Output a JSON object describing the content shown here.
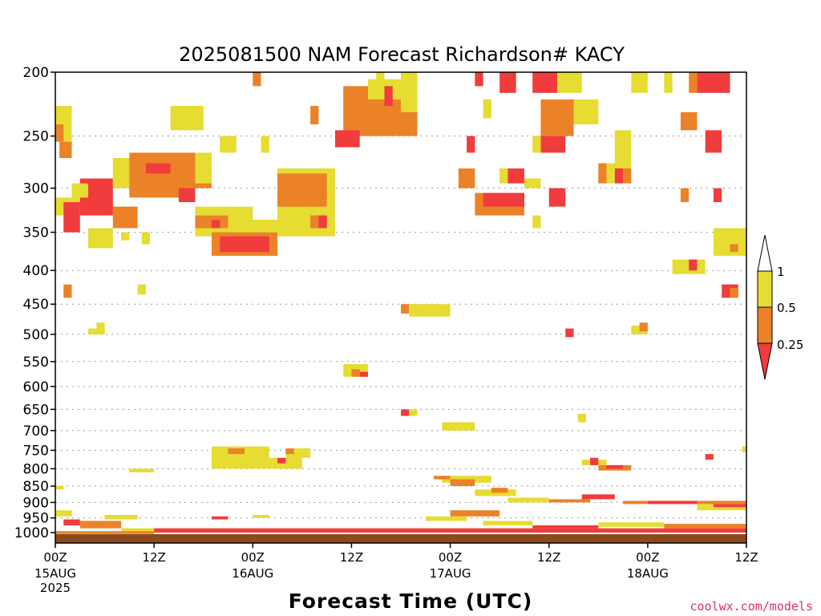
{
  "chart_data": {
    "type": "heatmap",
    "title": "2025081500 NAM Forecast Richardson# KACY",
    "xlabel": "Forecast Time (UTC)",
    "ylabel": "",
    "credit": "coolwx.com/models",
    "y_scale": "log-pressure",
    "y_reversed": true,
    "ylim": [
      200,
      1000
    ],
    "y_ticks": [
      200,
      250,
      300,
      350,
      400,
      450,
      500,
      550,
      600,
      650,
      700,
      750,
      800,
      850,
      900,
      950,
      1000
    ],
    "xlim_hours": [
      0,
      84
    ],
    "x_ticks": [
      {
        "hour": 0,
        "label": "00Z",
        "sub": "15AUG",
        "sub2": "2025"
      },
      {
        "hour": 12,
        "label": "12Z",
        "sub": "",
        "sub2": ""
      },
      {
        "hour": 24,
        "label": "00Z",
        "sub": "16AUG",
        "sub2": ""
      },
      {
        "hour": 36,
        "label": "12Z",
        "sub": "",
        "sub2": ""
      },
      {
        "hour": 48,
        "label": "00Z",
        "sub": "17AUG",
        "sub2": ""
      },
      {
        "hour": 60,
        "label": "12Z",
        "sub": "",
        "sub2": ""
      },
      {
        "hour": 72,
        "label": "00Z",
        "sub": "18AUG",
        "sub2": ""
      },
      {
        "hour": 84,
        "label": "12Z",
        "sub": "",
        "sub2": ""
      }
    ],
    "grid": true,
    "colorbar": {
      "position": "right",
      "levels": [
        {
          "label": "1",
          "value": 1.0
        },
        {
          "label": "0.5",
          "value": 0.5
        },
        {
          "label": "0.25",
          "value": 0.25
        }
      ],
      "bins": [
        {
          "range": "<0.25",
          "color": "#f03c3c"
        },
        {
          "range": "0.25-0.5",
          "color": "#eb8228"
        },
        {
          "range": "0.5-1",
          "color": "#e6dc32"
        },
        {
          "range": ">1",
          "color": "#ffffff"
        }
      ]
    },
    "bins_legend": [
      "<0.25",
      "0.25-0.5",
      "0.5-1"
    ],
    "cells": [
      [
        0,
        2,
        225,
        255,
        "0.5-1"
      ],
      [
        0,
        1,
        240,
        255,
        "0.25-0.5"
      ],
      [
        0.5,
        2,
        255,
        270,
        "0.25-0.5"
      ],
      [
        0,
        6,
        310,
        330,
        "0.5-1"
      ],
      [
        1,
        3,
        315,
        350,
        "<0.25"
      ],
      [
        3,
        7,
        290,
        330,
        "<0.25"
      ],
      [
        7,
        10,
        320,
        345,
        "0.25-0.5"
      ],
      [
        2,
        4,
        295,
        310,
        "0.5-1"
      ],
      [
        7,
        11,
        270,
        300,
        "0.5-1"
      ],
      [
        9,
        17,
        265,
        310,
        "0.25-0.5"
      ],
      [
        11,
        14,
        275,
        285,
        "<0.25"
      ],
      [
        14,
        19,
        275,
        300,
        "0.25-0.5"
      ],
      [
        15,
        17,
        300,
        315,
        "<0.25"
      ],
      [
        17,
        19,
        265,
        295,
        "0.5-1"
      ],
      [
        4,
        7,
        345,
        370,
        "0.5-1"
      ],
      [
        8,
        9,
        350,
        360,
        "0.5-1"
      ],
      [
        10.5,
        11.5,
        350,
        365,
        "0.5-1"
      ],
      [
        17,
        24,
        320,
        355,
        "0.5-1"
      ],
      [
        17,
        21,
        330,
        345,
        "0.25-0.5"
      ],
      [
        19,
        20,
        335,
        345,
        "<0.25"
      ],
      [
        19,
        27,
        350,
        380,
        "0.25-0.5"
      ],
      [
        20,
        26,
        355,
        375,
        "<0.25"
      ],
      [
        22,
        27,
        335,
        350,
        "0.5-1"
      ],
      [
        27,
        34,
        280,
        355,
        "0.5-1"
      ],
      [
        27,
        33,
        285,
        320,
        "0.25-0.5"
      ],
      [
        31,
        33,
        330,
        345,
        "0.25-0.5"
      ],
      [
        32,
        33,
        330,
        345,
        "<0.25"
      ],
      [
        24,
        25,
        200,
        210,
        "0.25-0.5"
      ],
      [
        14,
        18,
        225,
        245,
        "0.5-1"
      ],
      [
        20,
        22,
        250,
        265,
        "0.5-1"
      ],
      [
        25,
        26,
        250,
        265,
        "0.5-1"
      ],
      [
        35,
        44,
        210,
        250,
        "0.25-0.5"
      ],
      [
        34,
        37,
        245,
        260,
        "<0.25"
      ],
      [
        37,
        44,
        230,
        245,
        "0.25-0.5"
      ],
      [
        38,
        44,
        205,
        220,
        "0.5-1"
      ],
      [
        39,
        40,
        200,
        210,
        "0.5-1"
      ],
      [
        40,
        41,
        210,
        225,
        "<0.25"
      ],
      [
        42,
        44,
        200,
        230,
        "0.5-1"
      ],
      [
        31,
        32,
        225,
        240,
        "0.25-0.5"
      ],
      [
        10,
        11,
        420,
        435,
        "0.5-1"
      ],
      [
        1,
        2,
        420,
        440,
        "0.25-0.5"
      ],
      [
        42,
        43,
        450,
        465,
        "0.25-0.5"
      ],
      [
        43,
        48,
        450,
        470,
        "0.5-1"
      ],
      [
        5,
        6,
        480,
        500,
        "0.5-1"
      ],
      [
        4,
        6,
        490,
        500,
        "0.5-1"
      ],
      [
        35,
        38,
        555,
        580,
        "0.5-1"
      ],
      [
        36,
        37,
        565,
        580,
        "0.25-0.5"
      ],
      [
        37,
        38,
        570,
        580,
        "<0.25"
      ],
      [
        42,
        43,
        650,
        665,
        "<0.25"
      ],
      [
        43,
        44,
        650,
        665,
        "0.5-1"
      ],
      [
        47,
        51,
        680,
        700,
        "0.5-1"
      ],
      [
        51,
        52,
        200,
        210,
        "<0.25"
      ],
      [
        54,
        56,
        200,
        215,
        "<0.25"
      ],
      [
        52,
        53,
        220,
        235,
        "0.5-1"
      ],
      [
        50,
        51,
        250,
        265,
        "<0.25"
      ],
      [
        49,
        51,
        280,
        300,
        "0.25-0.5"
      ],
      [
        51,
        57,
        305,
        330,
        "0.25-0.5"
      ],
      [
        52,
        57,
        305,
        320,
        "<0.25"
      ],
      [
        54,
        55,
        280,
        295,
        "0.5-1"
      ],
      [
        55,
        57,
        280,
        295,
        "<0.25"
      ],
      [
        57,
        59,
        290,
        300,
        "0.5-1"
      ],
      [
        58,
        61,
        200,
        215,
        "<0.25"
      ],
      [
        59,
        63,
        220,
        250,
        "0.25-0.5"
      ],
      [
        59,
        62,
        250,
        265,
        "<0.25"
      ],
      [
        58,
        59,
        250,
        265,
        "0.5-1"
      ],
      [
        60,
        62,
        300,
        320,
        "<0.25"
      ],
      [
        58,
        59,
        330,
        345,
        "0.5-1"
      ],
      [
        63,
        66,
        220,
        240,
        "0.5-1"
      ],
      [
        61,
        64,
        200,
        215,
        "0.5-1"
      ],
      [
        70,
        72,
        200,
        215,
        "0.5-1"
      ],
      [
        74,
        75,
        200,
        215,
        "0.5-1"
      ],
      [
        78,
        82,
        200,
        215,
        "<0.25"
      ],
      [
        77,
        78,
        200,
        215,
        "0.25-0.5"
      ],
      [
        66,
        67,
        275,
        295,
        "0.25-0.5"
      ],
      [
        67,
        68,
        275,
        295,
        "0.5-1"
      ],
      [
        68,
        69,
        275,
        295,
        "<0.25"
      ],
      [
        69,
        70,
        275,
        295,
        "0.25-0.5"
      ],
      [
        68,
        70,
        245,
        280,
        "0.5-1"
      ],
      [
        76,
        78,
        230,
        245,
        "0.25-0.5"
      ],
      [
        79,
        81,
        245,
        265,
        "<0.25"
      ],
      [
        76,
        77,
        300,
        315,
        "0.25-0.5"
      ],
      [
        80,
        81,
        300,
        315,
        "<0.25"
      ],
      [
        75,
        79,
        385,
        405,
        "0.5-1"
      ],
      [
        77,
        78,
        385,
        400,
        "<0.25"
      ],
      [
        80,
        84,
        345,
        380,
        "0.5-1"
      ],
      [
        82,
        83,
        365,
        375,
        "0.25-0.5"
      ],
      [
        81,
        83,
        420,
        440,
        "<0.25"
      ],
      [
        82,
        83,
        425,
        440,
        "0.25-0.5"
      ],
      [
        62,
        63,
        490,
        505,
        "<0.25"
      ],
      [
        70,
        72,
        485,
        500,
        "0.5-1"
      ],
      [
        71,
        72,
        480,
        495,
        "0.25-0.5"
      ],
      [
        63.5,
        64.5,
        660,
        680,
        "0.5-1"
      ],
      [
        19,
        26,
        740,
        800,
        "0.5-1"
      ],
      [
        21,
        23,
        745,
        760,
        "0.25-0.5"
      ],
      [
        26,
        30,
        770,
        800,
        "0.5-1"
      ],
      [
        27,
        28,
        770,
        785,
        "<0.25"
      ],
      [
        28,
        31,
        745,
        770,
        "0.5-1"
      ],
      [
        28,
        29,
        745,
        760,
        "0.25-0.5"
      ],
      [
        9,
        12,
        800,
        810,
        "0.5-1"
      ],
      [
        64,
        67,
        775,
        790,
        "0.5-1"
      ],
      [
        65,
        66,
        770,
        790,
        "<0.25"
      ],
      [
        66,
        70,
        790,
        805,
        "0.25-0.5"
      ],
      [
        67,
        69,
        790,
        800,
        "<0.25"
      ],
      [
        79,
        80,
        760,
        775,
        "<0.25"
      ],
      [
        83.5,
        84,
        740,
        755,
        "0.5-1"
      ],
      [
        47,
        53,
        820,
        840,
        "0.5-1"
      ],
      [
        46,
        48,
        820,
        830,
        "0.25-0.5"
      ],
      [
        48,
        51,
        830,
        850,
        "0.25-0.5"
      ],
      [
        51,
        56,
        860,
        880,
        "0.5-1"
      ],
      [
        53,
        55,
        855,
        870,
        "0.25-0.5"
      ],
      [
        55,
        60,
        885,
        900,
        "0.5-1"
      ],
      [
        60,
        65,
        890,
        900,
        "0.25-0.5"
      ],
      [
        64,
        68,
        875,
        890,
        "<0.25"
      ],
      [
        69,
        84,
        895,
        905,
        "0.25-0.5"
      ],
      [
        72,
        78,
        895,
        905,
        "<0.25"
      ],
      [
        78,
        84,
        905,
        925,
        "0.5-1"
      ],
      [
        80,
        84,
        905,
        915,
        "<0.25"
      ],
      [
        0,
        1,
        850,
        860,
        "0.5-1"
      ],
      [
        0,
        2,
        925,
        945,
        "0.5-1"
      ],
      [
        1,
        3,
        955,
        975,
        "<0.25"
      ],
      [
        3,
        8,
        960,
        985,
        "0.25-0.5"
      ],
      [
        6,
        10,
        940,
        955,
        "0.5-1"
      ],
      [
        8,
        12,
        985,
        1000,
        "0.5-1"
      ],
      [
        19,
        21,
        945,
        955,
        "<0.25"
      ],
      [
        24,
        26,
        940,
        950,
        "0.5-1"
      ],
      [
        45,
        50,
        945,
        960,
        "0.5-1"
      ],
      [
        48,
        54,
        925,
        945,
        "0.25-0.5"
      ],
      [
        52,
        58,
        960,
        975,
        "0.5-1"
      ],
      [
        58,
        66,
        975,
        985,
        "<0.25"
      ],
      [
        66,
        74,
        965,
        980,
        "0.5-1"
      ],
      [
        74,
        84,
        970,
        985,
        "0.25-0.5"
      ],
      [
        12,
        84,
        985,
        1000,
        "<0.25"
      ],
      [
        0,
        12,
        995,
        1005,
        "0.25-0.5"
      ],
      [
        30,
        84,
        990,
        1000,
        "<0.25"
      ]
    ]
  }
}
